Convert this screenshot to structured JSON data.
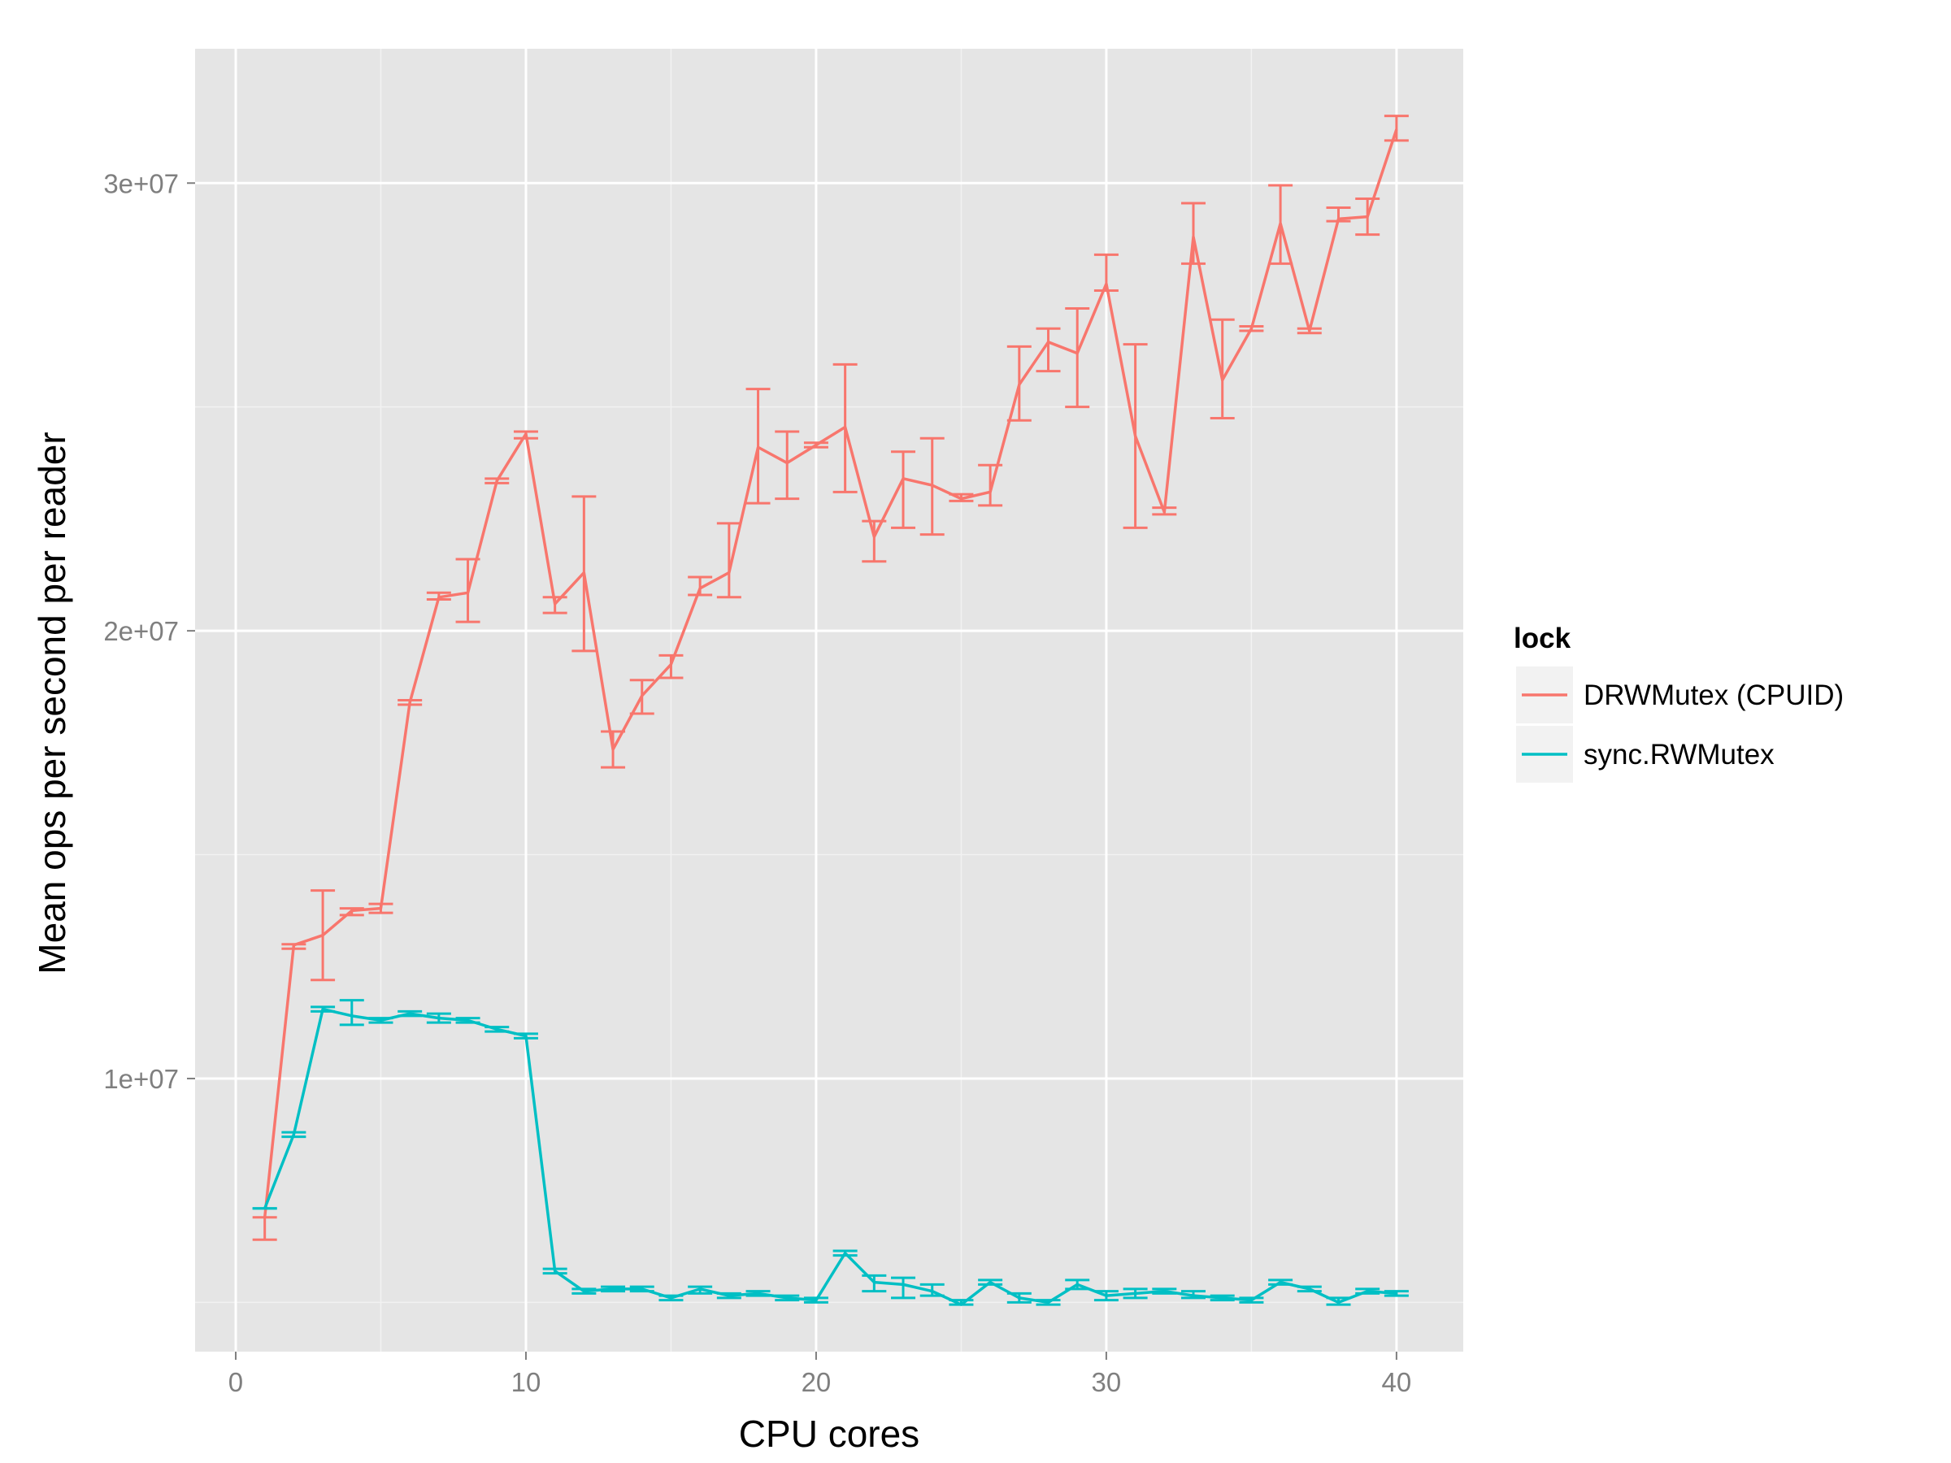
{
  "chart_data": {
    "type": "line",
    "xlabel": "CPU cores",
    "ylabel": "Mean ops per second per reader",
    "xlim": [
      -1.4,
      42.3
    ],
    "ylim": [
      3900000.0,
      33000000.0
    ],
    "x_ticks": [
      0,
      10,
      20,
      30,
      40
    ],
    "x_tick_labels": [
      "0",
      "10",
      "20",
      "30",
      "40"
    ],
    "y_ticks": [
      10000000,
      20000000,
      30000000
    ],
    "y_tick_labels": [
      "1e+07",
      "2e+07",
      "3e+07"
    ],
    "grid": true,
    "legend": {
      "title": "lock",
      "placement": "right"
    },
    "series": [
      {
        "name": "DRWMutex (CPUID)",
        "color": "#F8766D",
        "x": [
          1,
          2,
          3,
          4,
          5,
          6,
          7,
          8,
          9,
          10,
          11,
          12,
          13,
          14,
          15,
          16,
          17,
          18,
          19,
          20,
          21,
          22,
          23,
          24,
          25,
          26,
          27,
          28,
          29,
          30,
          31,
          32,
          33,
          34,
          35,
          36,
          37,
          38,
          39,
          40
        ],
        "values": [
          6900000,
          12980000,
          13200000,
          13750000,
          13800000,
          18400000,
          20750000,
          20850000,
          23350000,
          24400000,
          20600000,
          21300000,
          17350000,
          18550000,
          19250000,
          20950000,
          21300000,
          24100000,
          23750000,
          24150000,
          24550000,
          22100000,
          23400000,
          23250000,
          22950000,
          23100000,
          25500000,
          26450000,
          26200000,
          27750000,
          24350000,
          22650000,
          28800000,
          25600000,
          26750000,
          29100000,
          26700000,
          29200000,
          29250000,
          31200000
        ],
        "err_low": [
          6400000,
          12900000,
          12200000,
          13650000,
          13700000,
          18350000,
          20700000,
          20200000,
          23300000,
          24300000,
          20400000,
          19550000,
          16950000,
          18150000,
          18950000,
          20800000,
          20750000,
          22850000,
          22950000,
          24100000,
          23100000,
          21550000,
          22300000,
          22150000,
          22900000,
          22800000,
          24700000,
          25800000,
          25000000,
          27600000,
          22300000,
          22600000,
          28200000,
          24750000,
          26700000,
          28200000,
          26650000,
          29150000,
          28850000,
          30950000
        ],
        "err_high": [
          6900000,
          13000000,
          14200000,
          13800000,
          13900000,
          18450000,
          20850000,
          21600000,
          23400000,
          24450000,
          20750000,
          23000000,
          17750000,
          18900000,
          19450000,
          21200000,
          22400000,
          25400000,
          24450000,
          24200000,
          25950000,
          22450000,
          24000000,
          24300000,
          23050000,
          23700000,
          26350000,
          26750000,
          27200000,
          28400000,
          26400000,
          22750000,
          29550000,
          26950000,
          26800000,
          29950000,
          26750000,
          29450000,
          29650000,
          31500000
        ]
      },
      {
        "name": "sync.RWMutex",
        "color": "#00BFC4",
        "x": [
          1,
          2,
          3,
          4,
          5,
          6,
          7,
          8,
          9,
          10,
          11,
          12,
          13,
          14,
          15,
          16,
          17,
          18,
          19,
          20,
          21,
          22,
          23,
          24,
          25,
          26,
          27,
          28,
          29,
          30,
          31,
          32,
          33,
          34,
          35,
          36,
          37,
          38,
          39,
          40
        ],
        "values": [
          7100000,
          8750000,
          11550000,
          11400000,
          11300000,
          11450000,
          11350000,
          11300000,
          11100000,
          10950000,
          5700000,
          5250000,
          5300000,
          5300000,
          5100000,
          5300000,
          5150000,
          5200000,
          5100000,
          5050000,
          6100000,
          5450000,
          5400000,
          5250000,
          4950000,
          5450000,
          5100000,
          5000000,
          5400000,
          5150000,
          5200000,
          5250000,
          5150000,
          5100000,
          5050000,
          5450000,
          5300000,
          5000000,
          5250000,
          5200000
        ],
        "err_low": [
          7100000,
          8700000,
          11500000,
          11200000,
          11250000,
          11400000,
          11250000,
          11250000,
          11050000,
          10900000,
          5650000,
          5200000,
          5250000,
          5250000,
          5050000,
          5200000,
          5100000,
          5150000,
          5050000,
          5000000,
          6050000,
          5250000,
          5100000,
          5150000,
          4950000,
          5400000,
          5000000,
          4950000,
          5300000,
          5050000,
          5100000,
          5200000,
          5100000,
          5050000,
          5000000,
          5400000,
          5250000,
          4950000,
          5200000,
          5150000
        ],
        "err_high": [
          7100000,
          8800000,
          11600000,
          11750000,
          11350000,
          11500000,
          11450000,
          11350000,
          11150000,
          11000000,
          5750000,
          5300000,
          5350000,
          5350000,
          5150000,
          5350000,
          5200000,
          5250000,
          5150000,
          5100000,
          6150000,
          5600000,
          5550000,
          5400000,
          5050000,
          5500000,
          5200000,
          5050000,
          5500000,
          5250000,
          5300000,
          5300000,
          5250000,
          5150000,
          5100000,
          5500000,
          5350000,
          5100000,
          5300000,
          5250000
        ]
      }
    ]
  }
}
